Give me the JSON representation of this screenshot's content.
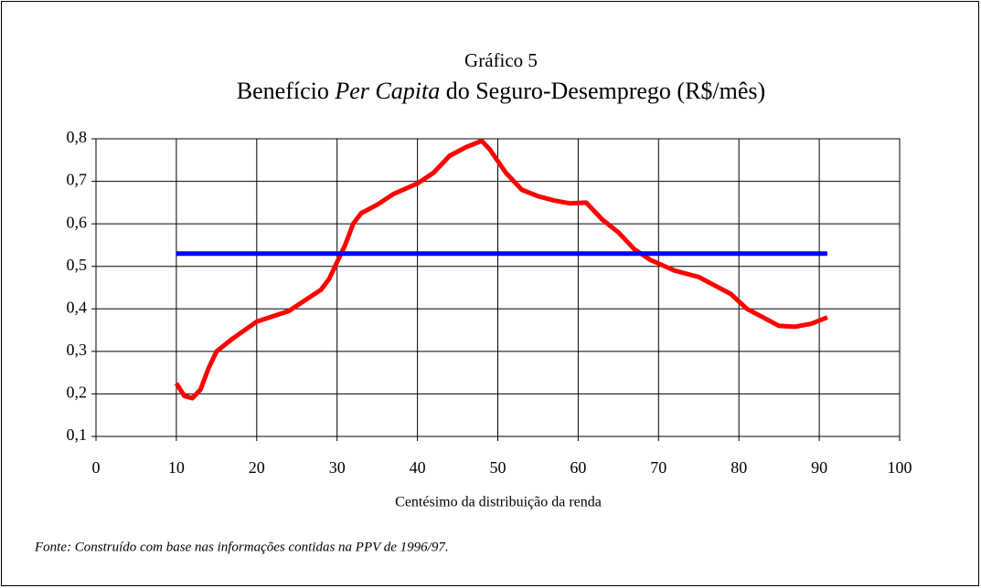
{
  "chart_data": {
    "type": "line",
    "title": "Gráfico 5",
    "subtitle": [
      {
        "text": "Benefício "
      },
      {
        "text": "Per Capita",
        "italic": true
      },
      {
        "text": " do Seguro-Desemprego (R$/mês)"
      }
    ],
    "x_label": "Centésimo da distribuição da renda",
    "note": "Fonte: Construído com base nas informações contidas na PPV de 1996/97.",
    "xlim": [
      0,
      100
    ],
    "xticks": [
      0,
      10,
      20,
      30,
      40,
      50,
      60,
      70,
      80,
      90,
      100
    ],
    "ylim": [
      0.1,
      0.8
    ],
    "yticks": [
      {
        "value": 0.1,
        "label": "0,1"
      },
      {
        "value": 0.2,
        "label": "0,2"
      },
      {
        "value": 0.3,
        "label": "0,3"
      },
      {
        "value": 0.4,
        "label": "0,4"
      },
      {
        "value": 0.5,
        "label": "0,5"
      },
      {
        "value": 0.6,
        "label": "0,6"
      },
      {
        "value": 0.7,
        "label": "0,7"
      },
      {
        "value": 0.8,
        "label": "0,8"
      }
    ],
    "grid": true,
    "series": [
      {
        "color": "#ff0000",
        "x": [
          10,
          11,
          12,
          13,
          14,
          15,
          17,
          20,
          24,
          26,
          28,
          29,
          31,
          32,
          33,
          35,
          37,
          40,
          42,
          44,
          46,
          48,
          49,
          51,
          53,
          55,
          57,
          59,
          61,
          63,
          65,
          67,
          69,
          72,
          75,
          77,
          79,
          81,
          83,
          85,
          87,
          89,
          91
        ],
        "values": [
          0.225,
          0.195,
          0.19,
          0.21,
          0.26,
          0.3,
          0.33,
          0.37,
          0.395,
          0.42,
          0.445,
          0.47,
          0.55,
          0.6,
          0.625,
          0.645,
          0.67,
          0.695,
          0.72,
          0.76,
          0.78,
          0.795,
          0.775,
          0.72,
          0.68,
          0.665,
          0.655,
          0.648,
          0.65,
          0.61,
          0.58,
          0.54,
          0.515,
          0.49,
          0.475,
          0.455,
          0.435,
          0.4,
          0.38,
          0.36,
          0.358,
          0.365,
          0.38
        ]
      },
      {
        "color": "#0000ff",
        "x": [
          10,
          91
        ],
        "values": [
          0.53,
          0.53
        ]
      }
    ]
  }
}
